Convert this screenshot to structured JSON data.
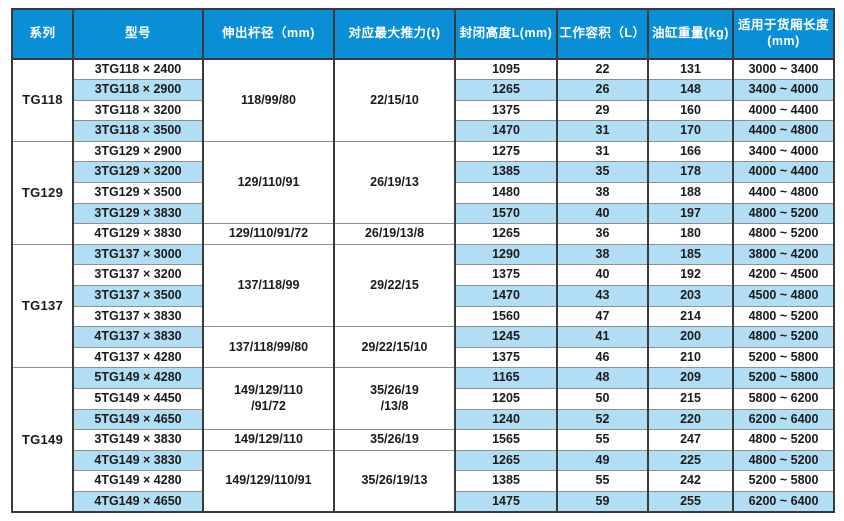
{
  "colors": {
    "header_bg": "#0a8fd6",
    "header_text": "#ffffff",
    "stripe_blue": "#b2def5",
    "border_dark": "#3a3a3a",
    "border_light": "#8f8f8f",
    "body_text": "#1a1a1a"
  },
  "table": {
    "headers": [
      "系列",
      "型号",
      "伸出杆径（mm)",
      "对应最大推力(t)",
      "封闭高度L(mm)",
      "工作容积（L）",
      "油缸重量(kg)",
      "适用于货厢长度\n(mm)"
    ],
    "groups": [
      {
        "series": "TG118",
        "spans": [
          {
            "rod": "118/99/80",
            "thrust": "22/15/10",
            "rowspan": 4
          }
        ],
        "rows": [
          {
            "model": "3TG118 × 2400",
            "closed_height": "1095",
            "working_volume": "22",
            "cylinder_weight": "131",
            "cargo_length": "3000 ~ 3400"
          },
          {
            "model": "3TG118 × 2900",
            "closed_height": "1265",
            "working_volume": "26",
            "cylinder_weight": "148",
            "cargo_length": "3400 ~ 4000"
          },
          {
            "model": "3TG118 × 3200",
            "closed_height": "1375",
            "working_volume": "29",
            "cylinder_weight": "160",
            "cargo_length": "4000 ~ 4400"
          },
          {
            "model": "3TG118 × 3500",
            "closed_height": "1470",
            "working_volume": "31",
            "cylinder_weight": "170",
            "cargo_length": "4400 ~ 4800"
          }
        ]
      },
      {
        "series": "TG129",
        "spans": [
          {
            "rod": "129/110/91",
            "thrust": "26/19/13",
            "rowspan": 4
          },
          {
            "rod": "129/110/91/72",
            "thrust": "26/19/13/8",
            "rowspan": 1
          }
        ],
        "rows": [
          {
            "model": "3TG129 × 2900",
            "closed_height": "1275",
            "working_volume": "31",
            "cylinder_weight": "166",
            "cargo_length": "3400 ~ 4000"
          },
          {
            "model": "3TG129 × 3200",
            "closed_height": "1385",
            "working_volume": "35",
            "cylinder_weight": "178",
            "cargo_length": "4000 ~ 4400"
          },
          {
            "model": "3TG129 × 3500",
            "closed_height": "1480",
            "working_volume": "38",
            "cylinder_weight": "188",
            "cargo_length": "4400 ~ 4800"
          },
          {
            "model": "3TG129 × 3830",
            "closed_height": "1570",
            "working_volume": "40",
            "cylinder_weight": "197",
            "cargo_length": "4800 ~ 5200"
          },
          {
            "model": "4TG129 × 3830",
            "closed_height": "1265",
            "working_volume": "36",
            "cylinder_weight": "180",
            "cargo_length": "4800 ~ 5200"
          }
        ]
      },
      {
        "series": "TG137",
        "spans": [
          {
            "rod": "137/118/99",
            "thrust": "29/22/15",
            "rowspan": 4
          },
          {
            "rod": "137/118/99/80",
            "thrust": "29/22/15/10",
            "rowspan": 2
          }
        ],
        "rows": [
          {
            "model": "3TG137 × 3000",
            "closed_height": "1290",
            "working_volume": "38",
            "cylinder_weight": "185",
            "cargo_length": "3800 ~ 4200"
          },
          {
            "model": "3TG137 × 3200",
            "closed_height": "1375",
            "working_volume": "40",
            "cylinder_weight": "192",
            "cargo_length": "4200 ~ 4500"
          },
          {
            "model": "3TG137 × 3500",
            "closed_height": "1470",
            "working_volume": "43",
            "cylinder_weight": "203",
            "cargo_length": "4500 ~ 4800"
          },
          {
            "model": "3TG137 × 3830",
            "closed_height": "1560",
            "working_volume": "47",
            "cylinder_weight": "214",
            "cargo_length": "4800 ~ 5200"
          },
          {
            "model": "4TG137 × 3830",
            "closed_height": "1245",
            "working_volume": "41",
            "cylinder_weight": "200",
            "cargo_length": "4800 ~ 5200"
          },
          {
            "model": "4TG137 × 4280",
            "closed_height": "1375",
            "working_volume": "46",
            "cylinder_weight": "210",
            "cargo_length": "5200 ~ 5800"
          }
        ]
      },
      {
        "series": "TG149",
        "spans": [
          {
            "rod": "149/129/110\n/91/72",
            "thrust": "35/26/19\n/13/8",
            "rowspan": 3
          },
          {
            "rod": "149/129/110",
            "thrust": "35/26/19",
            "rowspan": 1
          },
          {
            "rod": "149/129/110/91",
            "thrust": "35/26/19/13",
            "rowspan": 3
          }
        ],
        "rows": [
          {
            "model": "5TG149 × 4280",
            "closed_height": "1165",
            "working_volume": "48",
            "cylinder_weight": "209",
            "cargo_length": "5200 ~ 5800"
          },
          {
            "model": "5TG149 × 4450",
            "closed_height": "1205",
            "working_volume": "50",
            "cylinder_weight": "215",
            "cargo_length": "5800 ~ 6200"
          },
          {
            "model": "5TG149 × 4650",
            "closed_height": "1240",
            "working_volume": "52",
            "cylinder_weight": "220",
            "cargo_length": "6200 ~ 6400"
          },
          {
            "model": "3TG149 × 3830",
            "closed_height": "1565",
            "working_volume": "55",
            "cylinder_weight": "247",
            "cargo_length": "4800 ~ 5200"
          },
          {
            "model": "4TG149 × 3830",
            "closed_height": "1265",
            "working_volume": "49",
            "cylinder_weight": "225",
            "cargo_length": "4800 ~ 5200"
          },
          {
            "model": "4TG149 × 4280",
            "closed_height": "1385",
            "working_volume": "55",
            "cylinder_weight": "242",
            "cargo_length": "5200 ~ 5800"
          },
          {
            "model": "4TG149 × 4650",
            "closed_height": "1475",
            "working_volume": "59",
            "cylinder_weight": "255",
            "cargo_length": "6200 ~ 6400"
          }
        ]
      }
    ]
  }
}
